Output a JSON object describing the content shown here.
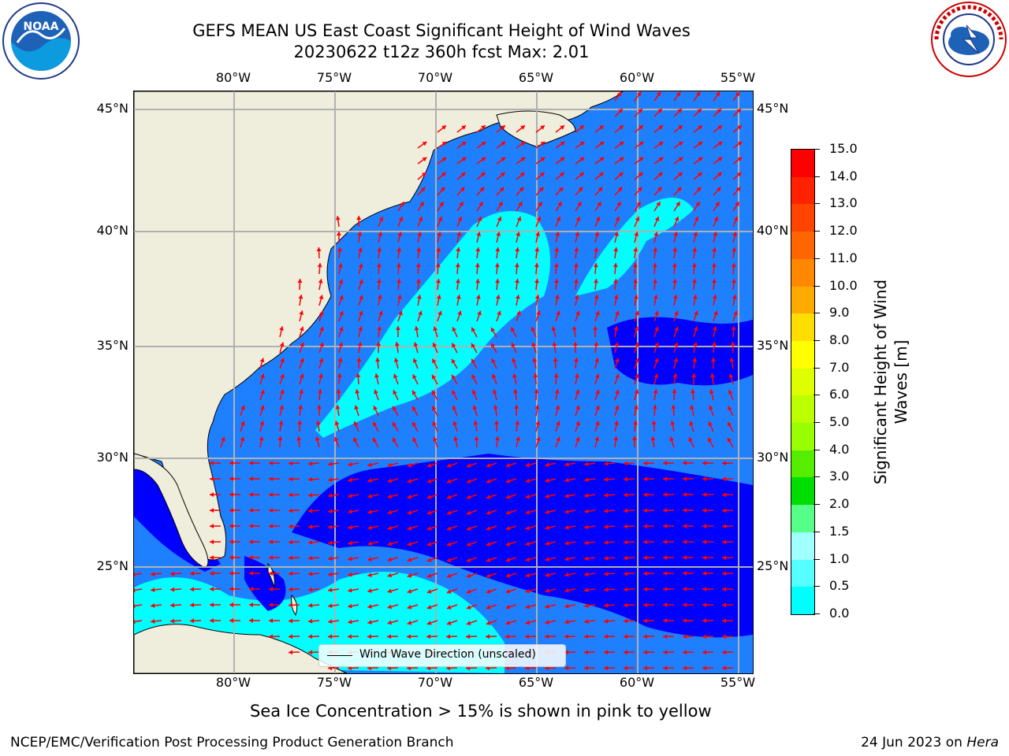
{
  "title": {
    "line1": "GEFS MEAN US East Coast Significant Height of Wind Waves",
    "line2": "20230622 t12z 360h fcst   Max: 2.01"
  },
  "logos": {
    "left": "noaa-logo",
    "left_text": "NOAA",
    "right": "nws-logo",
    "right_text": "NATIONAL WEATHER SERVICE"
  },
  "map": {
    "projection": "lat-lon",
    "lon_ticks": [
      "80°W",
      "75°W",
      "70°W",
      "65°W",
      "60°W",
      "55°W"
    ],
    "lat_ticks": [
      "45°N",
      "40°N",
      "35°N",
      "30°N",
      "25°N"
    ],
    "gridlines": true,
    "land_color": "#efeddc",
    "ocean_classes_m": [
      "0.0-0.5",
      "0.5-1.0",
      "1.0-1.5",
      "1.5-2.0",
      "2.0-3.0"
    ]
  },
  "legend": {
    "label": "Wind Wave Direction (unscaled)",
    "arrow_color": "#ff0000"
  },
  "colorbar": {
    "title": "Significant Height of Wind Waves [m]",
    "title_line1": "Significant Height of Wind",
    "title_line2": "Waves [m]",
    "labels": [
      "15.0",
      "14.0",
      "13.0",
      "12.0",
      "11.0",
      "10.0",
      "9.0",
      "8.0",
      "7.0",
      "6.0",
      "5.0",
      "4.0",
      "3.0",
      "2.0",
      "1.5",
      "1.0",
      "0.5",
      "0.0"
    ],
    "colors": [
      "#ff0000",
      "#ff2200",
      "#ff4400",
      "#ff6600",
      "#ff8800",
      "#ffaa00",
      "#ffdd00",
      "#ffff00",
      "#ddff00",
      "#bbff00",
      "#99ff00",
      "#55ee00",
      "#00dd00",
      "#55ff88",
      "#a0ffff",
      "#55ffff",
      "#00ffff",
      "#1f80ff",
      "#0000ff"
    ]
  },
  "note": "Sea Ice Concentration > 15% is shown in pink to yellow",
  "footer": {
    "org": "NCEP/EMC/Verification Post Processing Product Generation Branch",
    "date": "24 Jun 2023 on",
    "host": "Hera"
  }
}
